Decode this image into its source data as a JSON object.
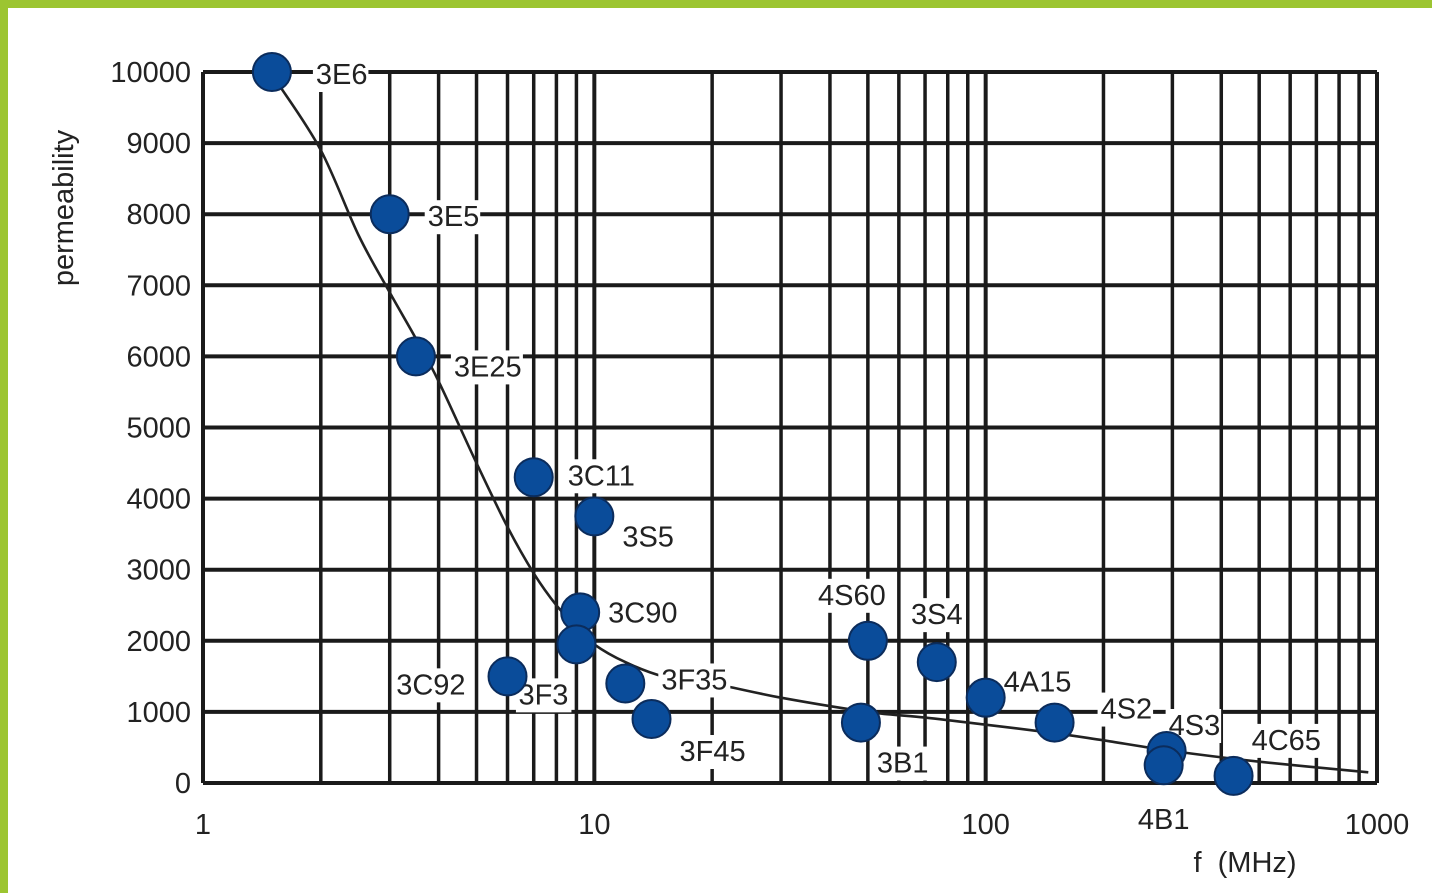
{
  "chart_data": {
    "type": "scatter",
    "x_scale": "log",
    "xlim": [
      1,
      1000
    ],
    "ylim": [
      0,
      10000
    ],
    "xlabel": "f  (MHz)",
    "ylabel": "permeability",
    "x_ticks": [
      "1",
      "10",
      "100",
      "1000"
    ],
    "y_ticks": [
      "0",
      "1000",
      "2000",
      "3000",
      "4000",
      "5000",
      "6000",
      "7000",
      "8000",
      "9000",
      "10000"
    ],
    "grid": true,
    "marker_color": "#0a4c9a",
    "points": [
      {
        "label": "3E6",
        "x": 1.5,
        "y": 10000
      },
      {
        "label": "3E5",
        "x": 3.0,
        "y": 8000
      },
      {
        "label": "3E25",
        "x": 3.5,
        "y": 6000
      },
      {
        "label": "3C11",
        "x": 7.0,
        "y": 4300
      },
      {
        "label": "3S5",
        "x": 10,
        "y": 3750
      },
      {
        "label": "3C90",
        "x": 9.2,
        "y": 2400
      },
      {
        "label": "3F3",
        "x": 9.0,
        "y": 1950
      },
      {
        "label": "3C92",
        "x": 6.0,
        "y": 1500
      },
      {
        "label": "3F35",
        "x": 12,
        "y": 1400
      },
      {
        "label": "3F45",
        "x": 14,
        "y": 900
      },
      {
        "label": "4S60",
        "x": 50,
        "y": 2000
      },
      {
        "label": "3B1",
        "x": 48,
        "y": 850
      },
      {
        "label": "3S4",
        "x": 75,
        "y": 1700
      },
      {
        "label": "4A15",
        "x": 100,
        "y": 1200
      },
      {
        "label": "4S2",
        "x": 150,
        "y": 850
      },
      {
        "label": "4S3",
        "x": 290,
        "y": 450
      },
      {
        "label": "4B1",
        "x": 285,
        "y": 250
      },
      {
        "label": "4C65",
        "x": 430,
        "y": 100
      }
    ],
    "trend_curve": [
      {
        "x": 1.55,
        "y": 9850
      },
      {
        "x": 2.0,
        "y": 8900
      },
      {
        "x": 2.5,
        "y": 7700
      },
      {
        "x": 3.0,
        "y": 6900
      },
      {
        "x": 3.5,
        "y": 6250
      },
      {
        "x": 4.0,
        "y": 5650
      },
      {
        "x": 5.0,
        "y": 4500
      },
      {
        "x": 6.0,
        "y": 3600
      },
      {
        "x": 7.0,
        "y": 2950
      },
      {
        "x": 8.0,
        "y": 2500
      },
      {
        "x": 9.0,
        "y": 2200
      },
      {
        "x": 10,
        "y": 1950
      },
      {
        "x": 12,
        "y": 1700
      },
      {
        "x": 15,
        "y": 1500
      },
      {
        "x": 20,
        "y": 1400
      },
      {
        "x": 30,
        "y": 1200
      },
      {
        "x": 50,
        "y": 1000
      },
      {
        "x": 70,
        "y": 920
      },
      {
        "x": 100,
        "y": 820
      },
      {
        "x": 150,
        "y": 700
      },
      {
        "x": 200,
        "y": 600
      },
      {
        "x": 300,
        "y": 450
      },
      {
        "x": 500,
        "y": 300
      },
      {
        "x": 950,
        "y": 150
      }
    ]
  }
}
